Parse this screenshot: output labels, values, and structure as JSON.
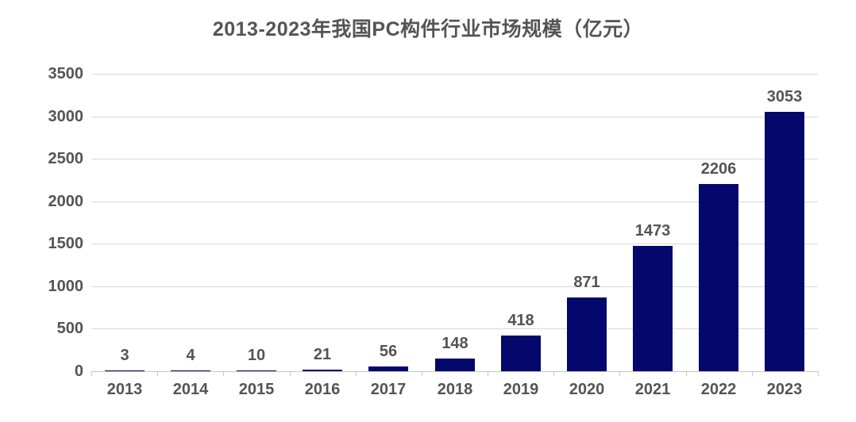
{
  "title": "2013-2023年我国PC构件行业市场规模（亿元）",
  "colors": {
    "bar": "#04076b",
    "gridline": "#d9d9d9",
    "axis": "#c6c6c6",
    "text": "#545454",
    "background": "#ffffff"
  },
  "chart_data": {
    "type": "bar",
    "title": "2013-2023年我国PC构件行业市场规模（亿元）",
    "categories": [
      "2013",
      "2014",
      "2015",
      "2016",
      "2017",
      "2018",
      "2019",
      "2020",
      "2021",
      "2022",
      "2023"
    ],
    "values": [
      3,
      4,
      10,
      21,
      56,
      148,
      418,
      871,
      1473,
      2206,
      3053
    ],
    "value_labels": [
      "3",
      "4",
      "10",
      "21",
      "56",
      "148",
      "418",
      "871",
      "1473",
      "2206",
      "3053"
    ],
    "xlabel": "",
    "ylabel": "",
    "ylim": [
      0,
      3500
    ],
    "yticks": [
      0,
      500,
      1000,
      1500,
      2000,
      2500,
      3000,
      3500
    ],
    "ytick_labels": [
      "0",
      "500",
      "1000",
      "1500",
      "2000",
      "2500",
      "3000",
      "3500"
    ],
    "grid": true,
    "legend_position": "none",
    "bar_color": "#04076b",
    "data_labels_shown": true
  }
}
